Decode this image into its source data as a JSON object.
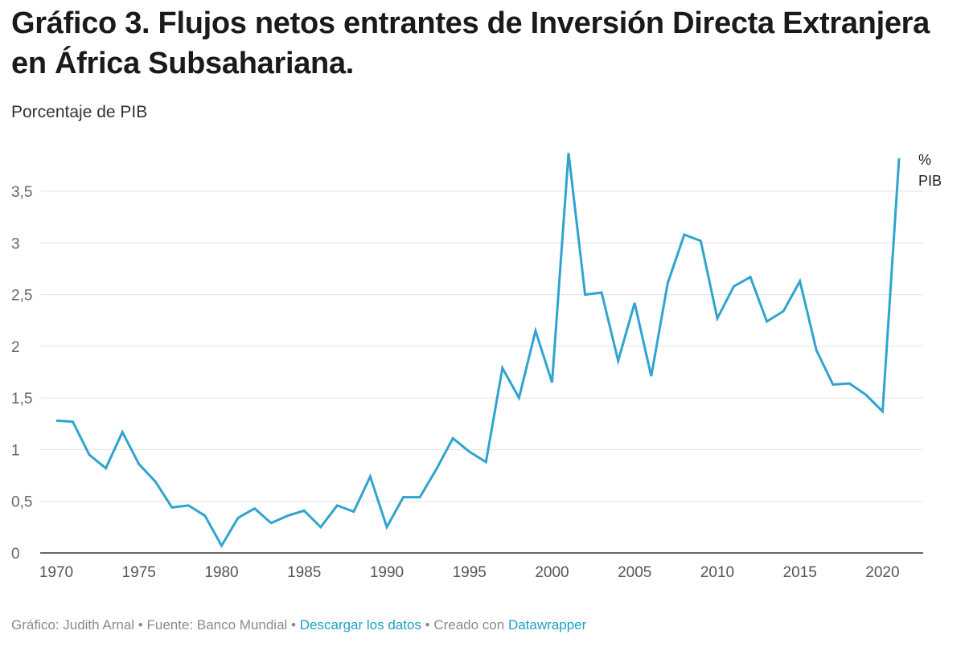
{
  "title": "Gráfico 3. Flujos netos entrantes de Inversión Directa Extranjera en África Subsahariana.",
  "subtitle": "Porcentaje de PIB",
  "footer": {
    "credit": "Gráfico: Judith Arnal",
    "sep1": " • ",
    "source": "Fuente: Banco Mundial",
    "sep2": " • ",
    "download_link": "Descargar los datos",
    "sep3": " • ",
    "created_with": "Creado con ",
    "tool_link": "Datawrapper"
  },
  "chart_data": {
    "type": "line",
    "title": "Gráfico 3. Flujos netos entrantes de Inversión Directa Extranjera en África Subsahariana.",
    "subtitle": "Porcentaje de PIB",
    "xlabel": "",
    "ylabel": "",
    "xlim": [
      1970,
      2021
    ],
    "ylim": [
      0,
      3.9
    ],
    "x_ticks": [
      "1970",
      "1975",
      "1980",
      "1985",
      "1990",
      "1995",
      "2000",
      "2005",
      "2010",
      "2015",
      "2020"
    ],
    "y_ticks": [
      "0",
      "0,5",
      "1",
      "1,5",
      "2",
      "2,5",
      "3",
      "3,5"
    ],
    "y_tick_values": [
      0,
      0.5,
      1,
      1.5,
      2,
      2.5,
      3,
      3.5
    ],
    "grid": true,
    "line_color": "#2fa4cf",
    "series": [
      {
        "name": "% PIB",
        "end_label_lines": [
          "%",
          "PIB"
        ],
        "x": [
          1970,
          1971,
          1972,
          1973,
          1974,
          1975,
          1976,
          1977,
          1978,
          1979,
          1980,
          1981,
          1982,
          1983,
          1984,
          1985,
          1986,
          1987,
          1988,
          1989,
          1990,
          1991,
          1992,
          1993,
          1994,
          1995,
          1996,
          1997,
          1998,
          1999,
          2000,
          2001,
          2002,
          2003,
          2004,
          2005,
          2006,
          2007,
          2008,
          2009,
          2010,
          2011,
          2012,
          2013,
          2014,
          2015,
          2016,
          2017,
          2018,
          2019,
          2020,
          2021
        ],
        "values": [
          1.28,
          1.27,
          0.95,
          0.82,
          1.17,
          0.86,
          0.69,
          0.44,
          0.46,
          0.36,
          0.07,
          0.34,
          0.43,
          0.29,
          0.36,
          0.41,
          0.25,
          0.46,
          0.4,
          0.74,
          0.25,
          0.54,
          0.54,
          0.81,
          1.11,
          0.98,
          0.88,
          1.79,
          1.5,
          2.15,
          1.65,
          3.87,
          2.5,
          2.52,
          1.86,
          2.42,
          1.71,
          2.61,
          3.08,
          3.02,
          2.27,
          2.58,
          2.67,
          2.24,
          2.34,
          2.63,
          1.96,
          1.63,
          1.64,
          1.53,
          1.37,
          3.82
        ]
      }
    ]
  }
}
